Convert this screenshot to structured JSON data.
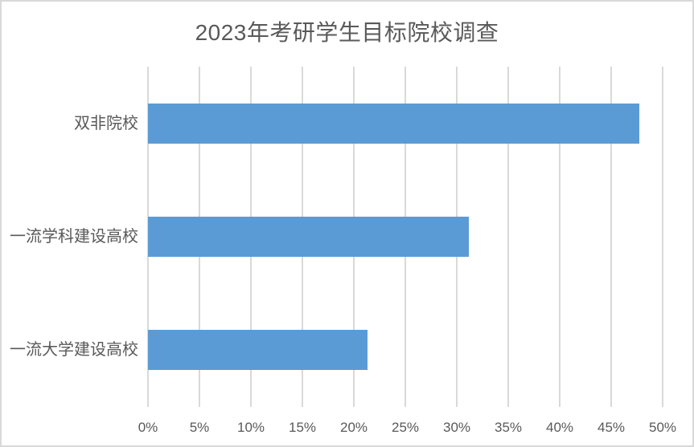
{
  "chart_data": {
    "type": "bar",
    "orientation": "horizontal",
    "title": "2023年考研学生目标院校调查",
    "categories": [
      "双非院校",
      "一流学科建设高校",
      "一流大学建设高校"
    ],
    "values": [
      47.7,
      31.2,
      21.3
    ],
    "value_unit": "%",
    "xlabel": "",
    "ylabel": "",
    "xlim": [
      0,
      50
    ],
    "xtick_values": [
      0,
      5,
      10,
      15,
      20,
      25,
      30,
      35,
      40,
      45,
      50
    ],
    "xtick_labels": [
      "0%",
      "5%",
      "10%",
      "15%",
      "20%",
      "25%",
      "30%",
      "35%",
      "40%",
      "45%",
      "50%"
    ],
    "grid": "vertical-gridlines-on",
    "legend": "none",
    "colors": {
      "bar": "#5B9BD5",
      "gridline": "#D9D9D9",
      "text": "#595959",
      "frame_border": "#D9D9D9",
      "background": "#FFFFFF"
    }
  }
}
